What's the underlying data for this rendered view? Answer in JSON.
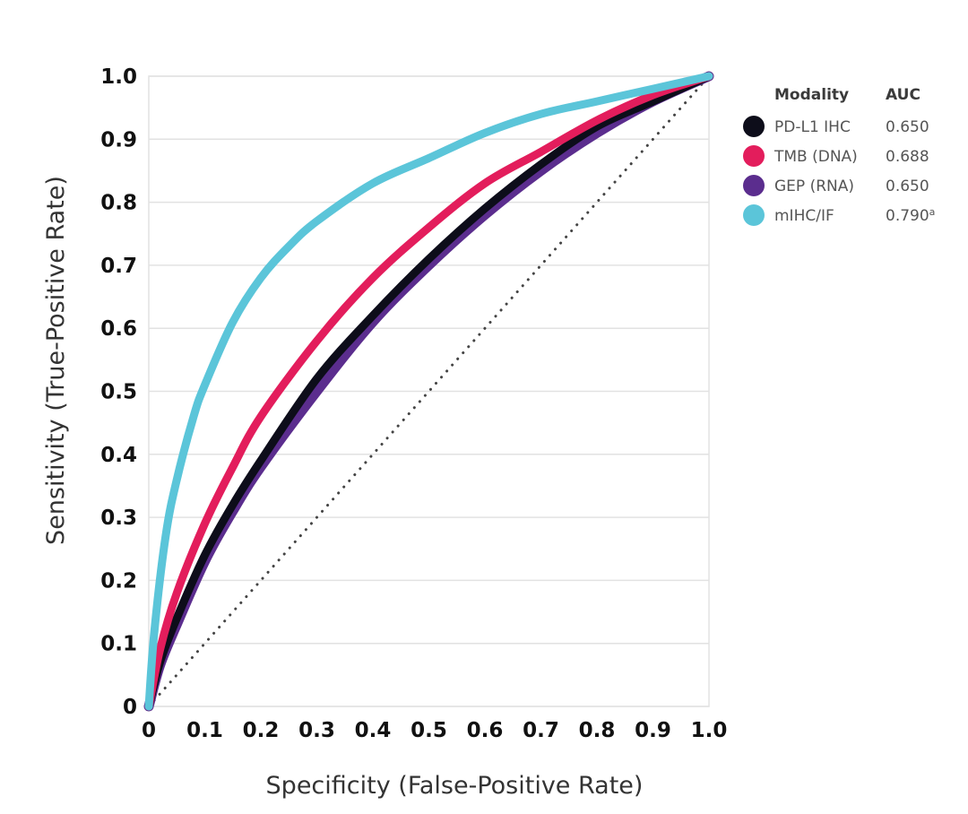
{
  "chart_data": {
    "type": "line",
    "title": "",
    "xlabel": "Specificity (False-Positive Rate)",
    "ylabel": "Sensitivity (True-Positive Rate)",
    "xlim": [
      0,
      1
    ],
    "ylim": [
      0,
      1
    ],
    "x_ticks": [
      "0",
      "0.1",
      "0.2",
      "0.3",
      "0.4",
      "0.5",
      "0.6",
      "0.7",
      "0.8",
      "0.9",
      "1.0"
    ],
    "y_ticks": [
      "0",
      "0.1",
      "0.2",
      "0.3",
      "0.4",
      "0.5",
      "0.6",
      "0.7",
      "0.8",
      "0.9",
      "1.0"
    ],
    "grid": "horizontal",
    "legend": {
      "placement": "right",
      "header_modality": "Modality",
      "header_auc": "AUC"
    },
    "reference_line": {
      "style": "dotted",
      "color": "#444444",
      "x": [
        0,
        1
      ],
      "y": [
        0,
        1
      ]
    },
    "series": [
      {
        "name": "PD-L1 IHC",
        "auc": "0.650",
        "auc_note": "",
        "color": "#0d0d1a",
        "x": [
          0,
          0.02,
          0.05,
          0.1,
          0.15,
          0.2,
          0.3,
          0.4,
          0.5,
          0.6,
          0.7,
          0.8,
          0.9,
          1.0
        ],
        "y": [
          0,
          0.07,
          0.14,
          0.24,
          0.32,
          0.39,
          0.52,
          0.62,
          0.71,
          0.79,
          0.86,
          0.92,
          0.96,
          1.0
        ]
      },
      {
        "name": "TMB (DNA)",
        "auc": "0.688",
        "auc_note": "",
        "color": "#e31d5c",
        "x": [
          0,
          0.02,
          0.05,
          0.1,
          0.15,
          0.2,
          0.3,
          0.4,
          0.5,
          0.6,
          0.7,
          0.8,
          0.9,
          1.0
        ],
        "y": [
          0,
          0.09,
          0.18,
          0.29,
          0.38,
          0.46,
          0.58,
          0.68,
          0.76,
          0.83,
          0.88,
          0.93,
          0.97,
          1.0
        ]
      },
      {
        "name": "GEP (RNA)",
        "auc": "0.650",
        "auc_note": "",
        "color": "#5b2d8e",
        "x": [
          0,
          0.02,
          0.05,
          0.1,
          0.15,
          0.2,
          0.3,
          0.4,
          0.5,
          0.6,
          0.7,
          0.8,
          0.9,
          1.0
        ],
        "y": [
          0,
          0.065,
          0.13,
          0.23,
          0.31,
          0.38,
          0.5,
          0.61,
          0.7,
          0.78,
          0.85,
          0.91,
          0.96,
          1.0
        ]
      },
      {
        "name": "mIHC/IF",
        "auc": "0.790",
        "auc_note": "a",
        "color": "#5bc5d9",
        "x": [
          0,
          0.01,
          0.03,
          0.05,
          0.08,
          0.1,
          0.15,
          0.2,
          0.25,
          0.3,
          0.4,
          0.5,
          0.6,
          0.7,
          0.8,
          0.9,
          1.0
        ],
        "y": [
          0,
          0.12,
          0.27,
          0.36,
          0.46,
          0.51,
          0.61,
          0.68,
          0.73,
          0.77,
          0.83,
          0.87,
          0.91,
          0.94,
          0.96,
          0.98,
          1.0
        ]
      }
    ]
  }
}
